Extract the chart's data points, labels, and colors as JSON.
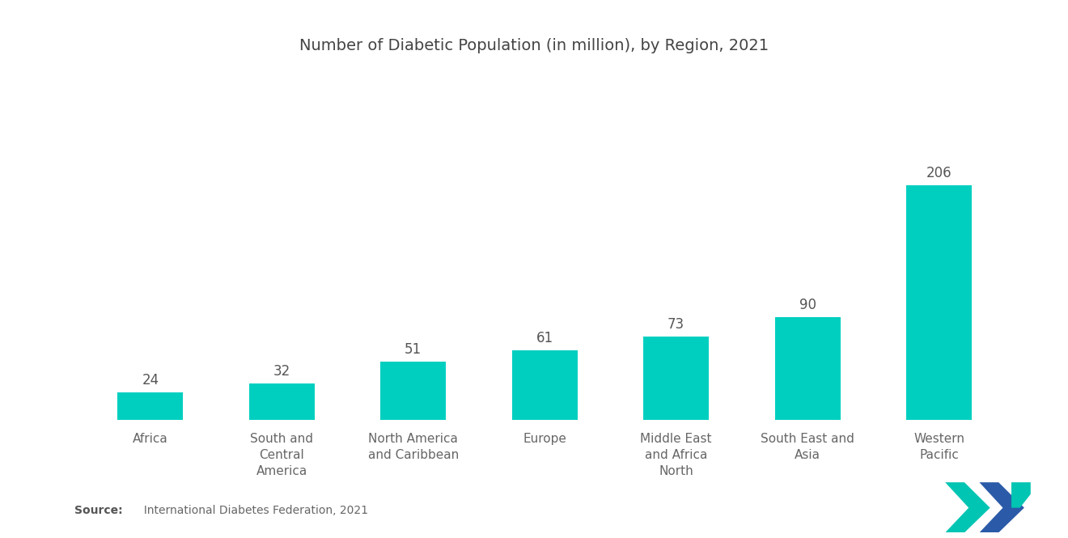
{
  "title": "Number of Diabetic Population (in million), by Region, 2021",
  "categories": [
    "Africa",
    "South and\nCentral\nAmerica",
    "North America\nand Caribbean",
    "Europe",
    "Middle East\nand Africa\nNorth",
    "South East and\nAsia",
    "Western\nPacific"
  ],
  "values": [
    24,
    32,
    51,
    61,
    73,
    90,
    206
  ],
  "bar_color": "#00CFC0",
  "background_color": "#ffffff",
  "title_fontsize": 14,
  "label_fontsize": 11,
  "value_fontsize": 12,
  "source_bold": "Source:",
  "source_text": "  International Diabetes Federation, 2021",
  "source_fontsize": 10,
  "ylim": [
    0,
    260
  ],
  "bar_width": 0.5,
  "value_color": "#555555",
  "label_color": "#666666"
}
